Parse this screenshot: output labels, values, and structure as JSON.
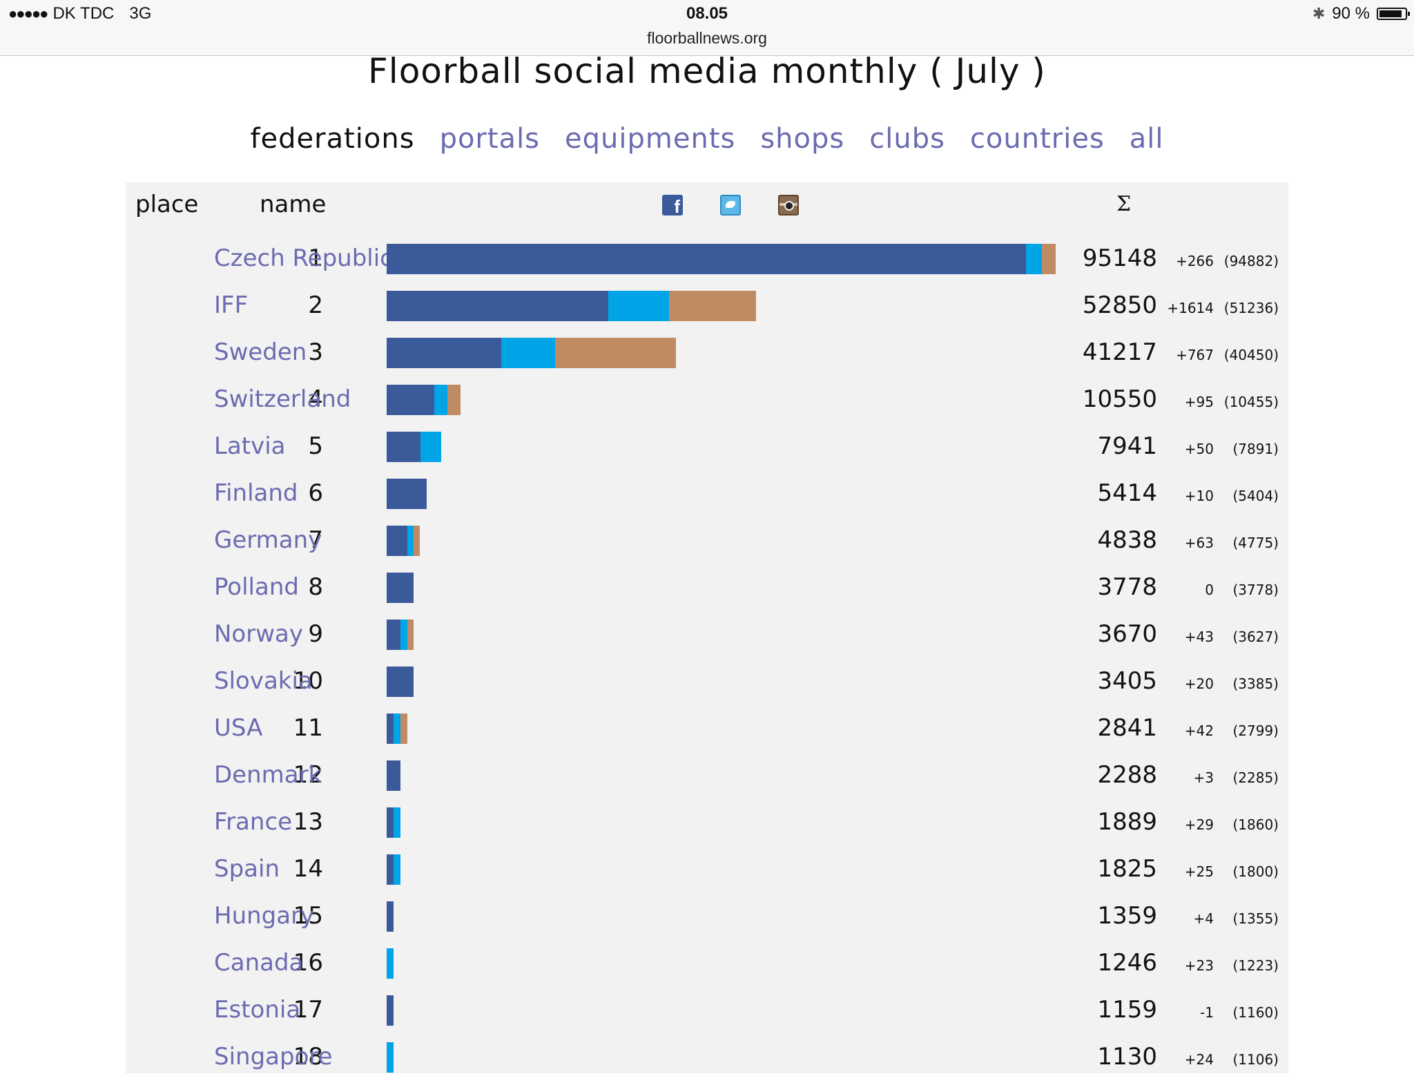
{
  "status_bar": {
    "signal": "●●●●●",
    "carrier": "DK TDC",
    "network": "3G",
    "time": "08.05",
    "url": "floorballnews.org",
    "battery": "90 %",
    "battery_level": 0.9
  },
  "title": "Floorball social media monthly ( July )",
  "nav": {
    "active": "federations",
    "items": [
      "federations",
      "portals",
      "equipments",
      "shops",
      "clubs",
      "countries",
      "all"
    ]
  },
  "table": {
    "headers": {
      "place": "place",
      "name": "name",
      "facebook_icon_letter": "f",
      "sum": "Σ"
    },
    "colors": {
      "facebook": "#3b5a9a",
      "twitter": "#00a5e8",
      "instagram": "#c08b62"
    },
    "max_total": 95148,
    "rows": [
      {
        "place": "1",
        "name": "Czech Republic",
        "total": "95148",
        "delta": "+266",
        "prev": "(94882)",
        "fb": 87226,
        "tw": 2200,
        "ig": 1900
      },
      {
        "place": "2",
        "name": "IFF",
        "total": "52850",
        "delta": "+1614",
        "prev": "(51236)",
        "fb": 30200,
        "tw": 8300,
        "ig": 11900
      },
      {
        "place": "3",
        "name": "Sweden",
        "total": "41217",
        "delta": "+767",
        "prev": "(40450)",
        "fb": 15600,
        "tw": 7400,
        "ig": 16500
      },
      {
        "place": "4",
        "name": "Switzerland",
        "total": "10550",
        "delta": "+95",
        "prev": "(10455)",
        "fb": 6500,
        "tw": 1800,
        "ig": 1800
      },
      {
        "place": "5",
        "name": "Latvia",
        "total": "7941",
        "delta": "+50",
        "prev": "(7891)",
        "fb": 4600,
        "tw": 2800,
        "ig": 0
      },
      {
        "place": "6",
        "name": "Finland",
        "total": "5414",
        "delta": "+10",
        "prev": "(5404)",
        "fb": 5500,
        "tw": 0,
        "ig": 0
      },
      {
        "place": "7",
        "name": "Germany",
        "total": "4838",
        "delta": "+63",
        "prev": "(4775)",
        "fb": 2800,
        "tw": 900,
        "ig": 850
      },
      {
        "place": "8",
        "name": "Polland",
        "total": "3778",
        "delta": "0",
        "prev": "(3778)",
        "fb": 3700,
        "tw": 0,
        "ig": 0
      },
      {
        "place": "9",
        "name": "Norway",
        "total": "3670",
        "delta": "+43",
        "prev": "(3627)",
        "fb": 1900,
        "tw": 900,
        "ig": 850
      },
      {
        "place": "10",
        "name": "Slovakia",
        "total": "3405",
        "delta": "+20",
        "prev": "(3385)",
        "fb": 3700,
        "tw": 0,
        "ig": 0
      },
      {
        "place": "11",
        "name": "USA",
        "total": "2841",
        "delta": "+42",
        "prev": "(2799)",
        "fb": 950,
        "tw": 950,
        "ig": 950
      },
      {
        "place": "12",
        "name": "Denmark",
        "total": "2288",
        "delta": "+3",
        "prev": "(2285)",
        "fb": 1900,
        "tw": 0,
        "ig": 0
      },
      {
        "place": "13",
        "name": "France",
        "total": "1889",
        "delta": "+29",
        "prev": "(1860)",
        "fb": 950,
        "tw": 950,
        "ig": 0
      },
      {
        "place": "14",
        "name": "Spain",
        "total": "1825",
        "delta": "+25",
        "prev": "(1800)",
        "fb": 950,
        "tw": 950,
        "ig": 0
      },
      {
        "place": "15",
        "name": "Hungary",
        "total": "1359",
        "delta": "+4",
        "prev": "(1355)",
        "fb": 950,
        "tw": 0,
        "ig": 0
      },
      {
        "place": "16",
        "name": "Canada",
        "total": "1246",
        "delta": "+23",
        "prev": "(1223)",
        "fb": 0,
        "tw": 950,
        "ig": 0
      },
      {
        "place": "17",
        "name": "Estonia",
        "total": "1159",
        "delta": "-1",
        "prev": "(1160)",
        "fb": 950,
        "tw": 0,
        "ig": 0
      },
      {
        "place": "18",
        "name": "Singapore",
        "total": "1130",
        "delta": "+24",
        "prev": "(1106)",
        "fb": 0,
        "tw": 950,
        "ig": 0
      }
    ]
  }
}
